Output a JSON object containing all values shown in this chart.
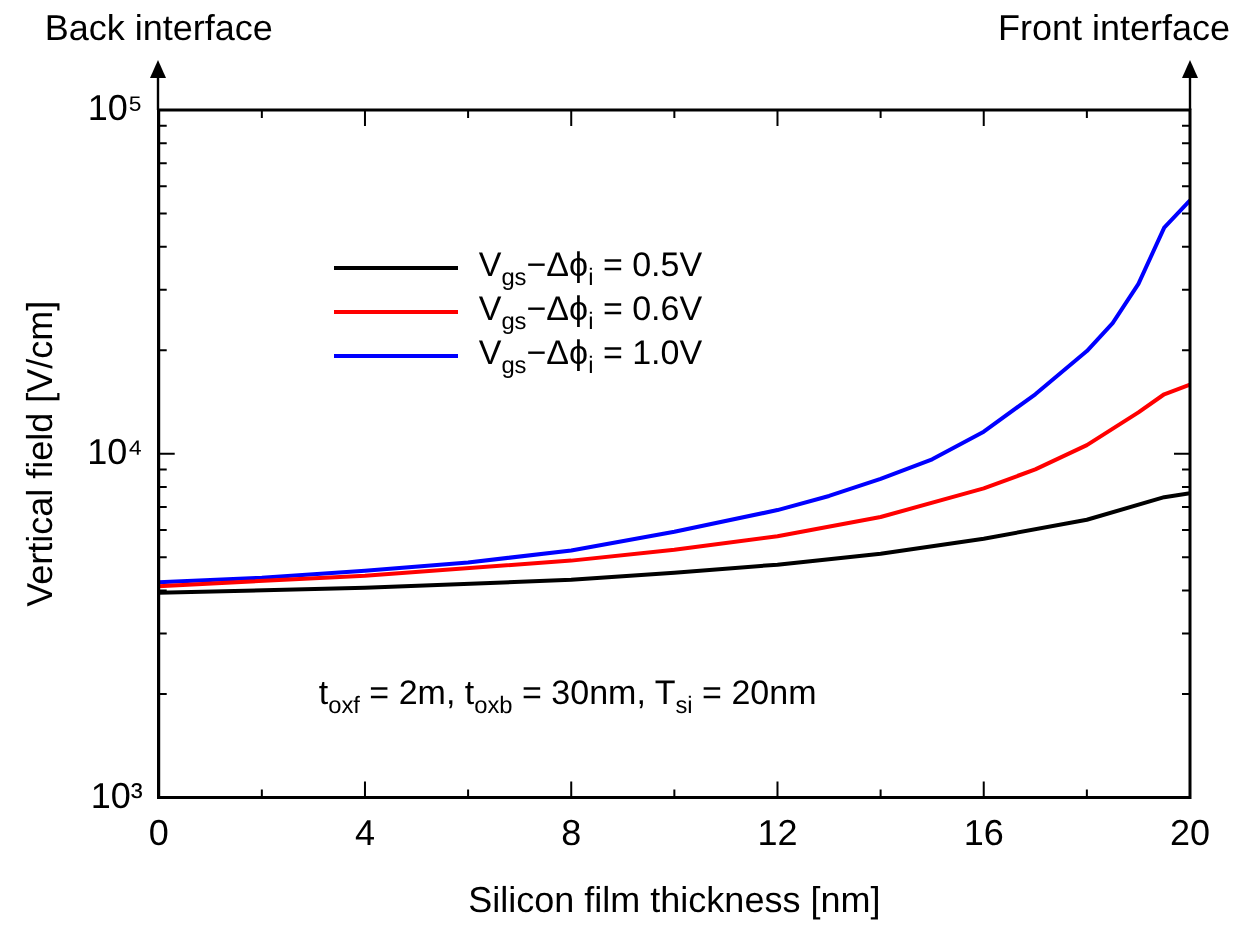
{
  "chart_data": {
    "type": "line",
    "xlabel": "Silicon film thickness [nm]",
    "ylabel": "Vertical field [V/cm]",
    "log": "y",
    "grid": false,
    "legend": "top left",
    "marker": "none",
    "line_style": "solid",
    "xlim": [
      0,
      20
    ],
    "ylim": [
      1000,
      100000
    ],
    "xticks": [
      0,
      {
        "value": 2,
        "label": null
      },
      4,
      {
        "value": 6,
        "label": null
      },
      8,
      {
        "value": 10,
        "label": null
      },
      12,
      {
        "value": 14,
        "label": null
      },
      16,
      {
        "value": 18,
        "label": null
      },
      20
    ],
    "yticks": [
      {
        "value": 1000,
        "label": "10³"
      },
      {
        "value": 2000,
        "label": null
      },
      {
        "value": 3000,
        "label": null
      },
      {
        "value": 4000,
        "label": null
      },
      {
        "value": 5000,
        "label": null
      },
      {
        "value": 6000,
        "label": null
      },
      {
        "value": 7000,
        "label": null
      },
      {
        "value": 8000,
        "label": null
      },
      {
        "value": 9000,
        "label": null
      },
      {
        "value": 10000,
        "label": "10⁴"
      },
      {
        "value": 20000,
        "label": null
      },
      {
        "value": 30000,
        "label": null
      },
      {
        "value": 40000,
        "label": null
      },
      {
        "value": 50000,
        "label": null
      },
      {
        "value": 60000,
        "label": null
      },
      {
        "value": 70000,
        "label": null
      },
      {
        "value": 80000,
        "label": null
      },
      {
        "value": 90000,
        "label": null
      },
      {
        "value": 100000,
        "label": "10⁵"
      }
    ],
    "annotations": [
      "Back interface",
      "Front interface",
      "t$_{oxf}$ = 2m, t$_{oxb}$ = 30nm, T$_{si}$ = 20nm"
    ],
    "series": [
      {
        "name": "V$_{gs}$−Δϕ$_{i}$ = 0.5V",
        "color": "#000000",
        "x": [
          0,
          4,
          8,
          10,
          12,
          14,
          16,
          18,
          19.5,
          20
        ],
        "values": [
          3940,
          4080,
          4300,
          4510,
          4760,
          5120,
          5660,
          6430,
          7480,
          7680
        ]
      },
      {
        "name": "V$_{gs}$−Δϕ$_{i}$ = 0.6V",
        "color": "#ff0000",
        "x": [
          0,
          4,
          8,
          10,
          12,
          14,
          16,
          17,
          18,
          19,
          19.5,
          20
        ],
        "values": [
          4120,
          4420,
          4890,
          5260,
          5760,
          6550,
          7930,
          9010,
          10600,
          13200,
          14900,
          15900
        ]
      },
      {
        "name": "V$_{gs}$−Δϕ$_{i}$ = 1.0V",
        "color": "#0000ff",
        "x": [
          0,
          2,
          4,
          6,
          8,
          10,
          12,
          13,
          14,
          15,
          16,
          17,
          18,
          18.5,
          19,
          19.5,
          20
        ],
        "values": [
          4230,
          4360,
          4570,
          4830,
          5230,
          5930,
          6860,
          7540,
          8450,
          9640,
          11600,
          14900,
          19900,
          24000,
          31200,
          45500,
          54600
        ]
      }
    ]
  }
}
